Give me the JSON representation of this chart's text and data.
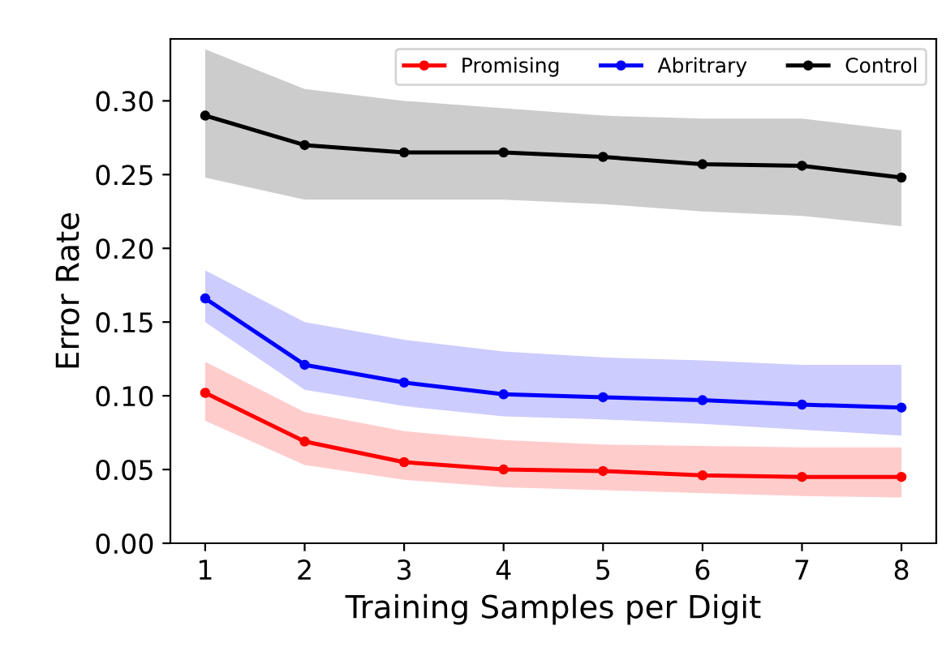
{
  "chart_data": {
    "type": "line",
    "xlabel": "Training Samples per Digit",
    "ylabel": "Error Rate",
    "x": [
      1,
      2,
      3,
      4,
      5,
      6,
      7,
      8
    ],
    "xlim": [
      0.65,
      8.35
    ],
    "xticks": [
      1,
      2,
      3,
      4,
      5,
      6,
      7,
      8
    ],
    "ylim": [
      0,
      0.342
    ],
    "yticks": [
      {
        "value": 0,
        "label": "0.00"
      },
      {
        "value": 0.05,
        "label": "0.05"
      },
      {
        "value": 0.1,
        "label": "0.10"
      },
      {
        "value": 0.15,
        "label": "0.15"
      },
      {
        "value": 0.2,
        "label": "0.20"
      },
      {
        "value": 0.25,
        "label": "0.25"
      },
      {
        "value": 0.3,
        "label": "0.30"
      }
    ],
    "marker": "circle",
    "line_style": "solid",
    "legend": "top right",
    "grid": false,
    "series": [
      {
        "name": "Promising",
        "color": "#ff0000",
        "values": [
          0.102,
          0.069,
          0.055,
          0.05,
          0.049,
          0.046,
          0.045,
          0.045
        ],
        "lower": [
          0.083,
          0.053,
          0.043,
          0.038,
          0.036,
          0.034,
          0.032,
          0.031
        ],
        "upper": [
          0.123,
          0.089,
          0.076,
          0.07,
          0.067,
          0.066,
          0.065,
          0.065
        ]
      },
      {
        "name": "Abritrary",
        "color": "#0000ff",
        "values": [
          0.166,
          0.121,
          0.109,
          0.101,
          0.099,
          0.097,
          0.094,
          0.092
        ],
        "lower": [
          0.15,
          0.104,
          0.093,
          0.086,
          0.084,
          0.081,
          0.077,
          0.073
        ],
        "upper": [
          0.185,
          0.15,
          0.138,
          0.13,
          0.126,
          0.124,
          0.121,
          0.121
        ]
      },
      {
        "name": "Control",
        "color": "#000000",
        "values": [
          0.29,
          0.27,
          0.265,
          0.265,
          0.262,
          0.257,
          0.256,
          0.248
        ],
        "lower": [
          0.248,
          0.233,
          0.233,
          0.233,
          0.23,
          0.225,
          0.222,
          0.215
        ],
        "upper": [
          0.335,
          0.308,
          0.3,
          0.295,
          0.29,
          0.288,
          0.288,
          0.28
        ]
      }
    ]
  }
}
